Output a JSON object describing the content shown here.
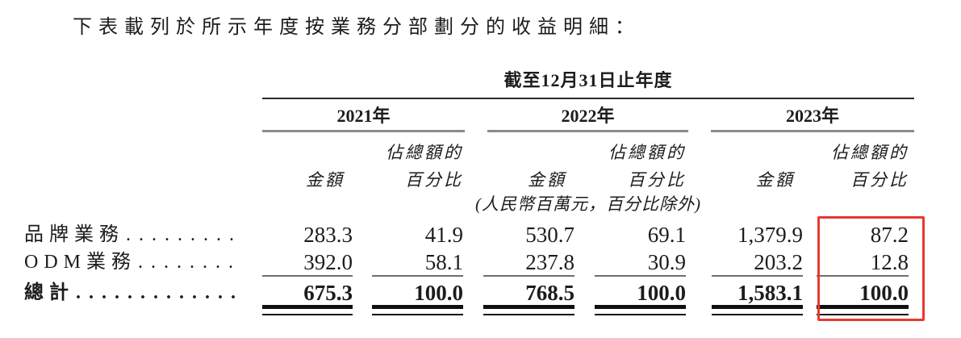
{
  "intro": "下表載列於所示年度按業務分部劃分的收益明細：",
  "highlight_color": "#e8392f",
  "table": {
    "period_header": "截至12月31日止年度",
    "years": [
      "2021年",
      "2022年",
      "2023年"
    ],
    "subheaders": {
      "amount": "金額",
      "pct_line1": "佔總額的",
      "pct_line2": "百分比"
    },
    "unit_note": "(人民幣百萬元，百分比除外)",
    "rows": [
      {
        "label": "品牌業務",
        "leader": ". . . . . . . . . . . .",
        "values": [
          "283.3",
          "41.9",
          "530.7",
          "69.1",
          "1,379.9",
          "87.2"
        ]
      },
      {
        "label": "ODM業務",
        "leader": ". . . . . . . . . . . .",
        "values": [
          "392.0",
          "58.1",
          "237.8",
          "30.9",
          "203.2",
          "12.8"
        ]
      }
    ],
    "total_row": {
      "label": "總計",
      "leader": ". . . . . . . . . . . . . . . . . .",
      "values": [
        "675.3",
        "100.0",
        "768.5",
        "100.0",
        "1,583.1",
        "100.0"
      ]
    }
  }
}
